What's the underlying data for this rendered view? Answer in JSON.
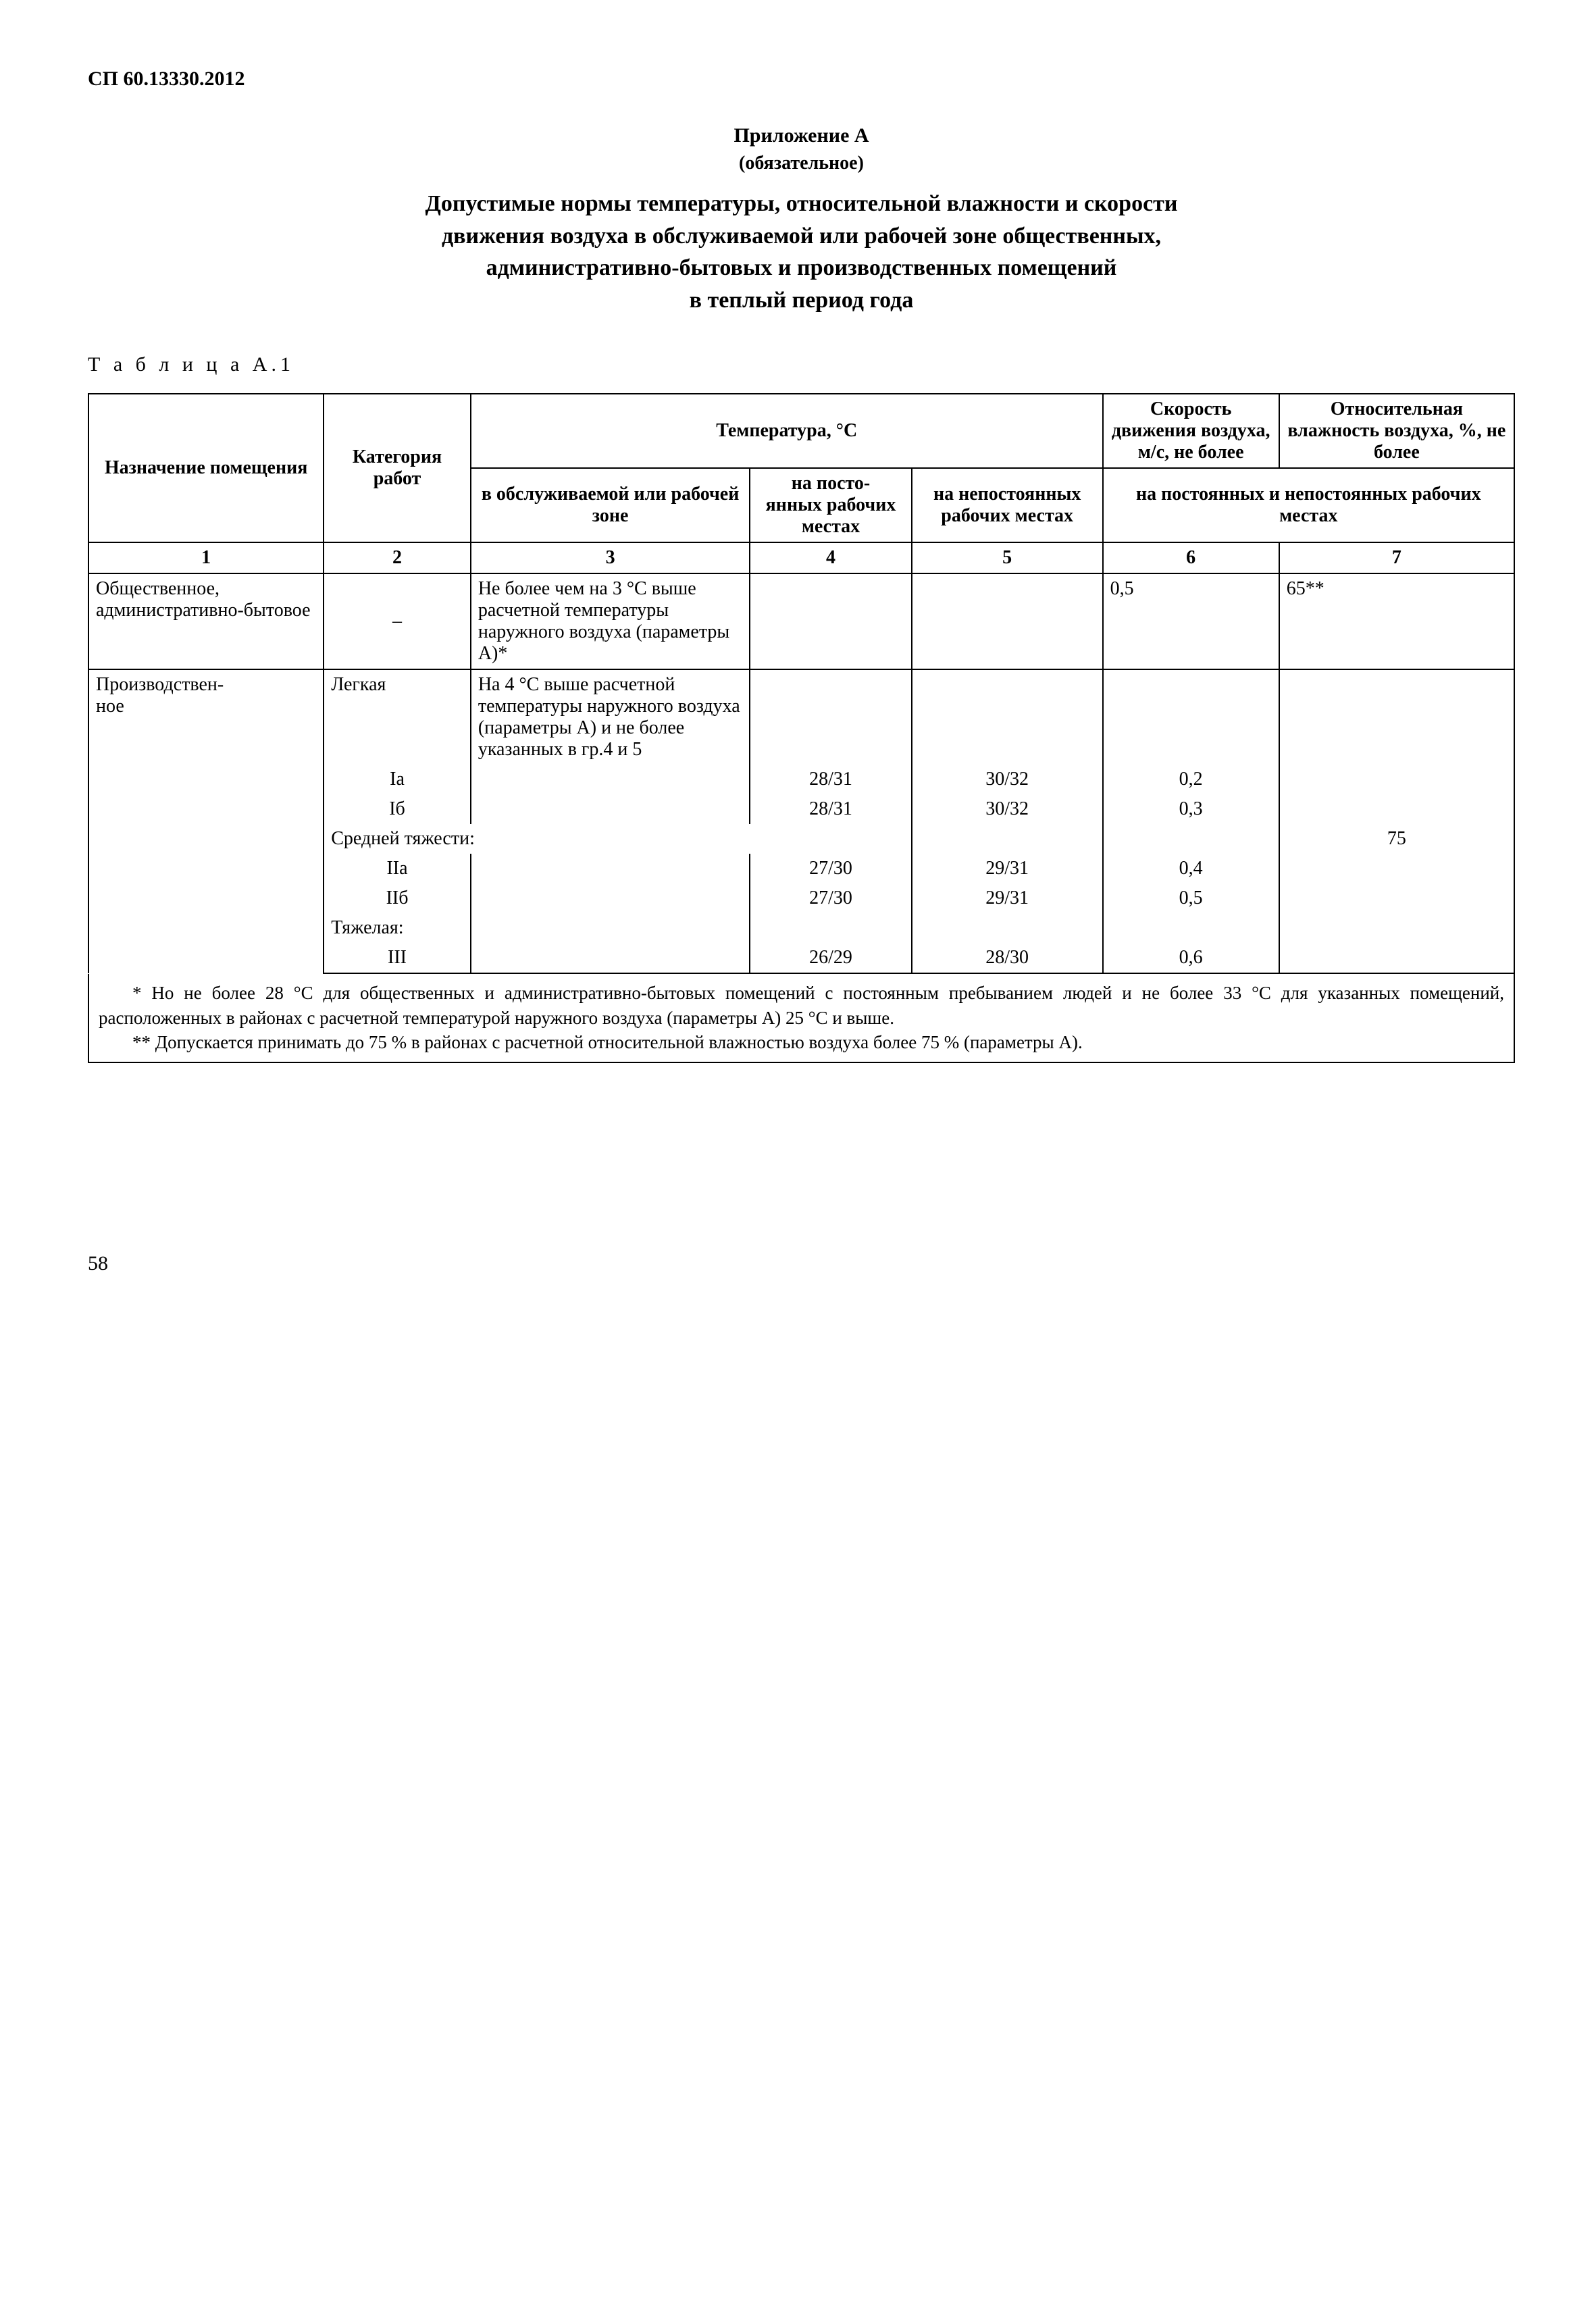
{
  "colors": {
    "background": "#ffffff",
    "text": "#000000",
    "border": "#000000"
  },
  "typography": {
    "font_family": "Times New Roman",
    "base_size_pt": 14,
    "title_size_pt": 17,
    "header_weight": "bold"
  },
  "doc_code": "СП 60.13330.2012",
  "appendix_title": "Приложение А",
  "appendix_subtitle": "(обязательное)",
  "main_title_l1": "Допустимые нормы температуры, относительной влажности и скорости",
  "main_title_l2": "движения воздуха в обслуживаемой или рабочей зоне общественных,",
  "main_title_l3": "административно-бытовых и производственных помещений",
  "main_title_l4": "в теплый период года",
  "table_label": "Т а б л и ц а  А.1",
  "table": {
    "type": "table",
    "column_widths_pct": [
      16,
      10,
      19,
      11,
      13,
      12,
      16
    ],
    "header": {
      "col1": "Назначение помещения",
      "col2": "Категория работ",
      "temp_group": "Температура, °С",
      "col3_sub": "в обслуживаемой или рабочей зоне",
      "col4_sub": "на посто-\nянных рабочих местах",
      "col5_sub": "на непостоянных рабочих местах",
      "col6": "Скорость движения воздуха, м/с, не более",
      "col7": "Относительная влажность воздуха, %, не более",
      "col67_sub": "на постоянных и непостоянных рабочих местах"
    },
    "col_nums": [
      "1",
      "2",
      "3",
      "4",
      "5",
      "6",
      "7"
    ],
    "rows": [
      {
        "c1": "Общественное, административно-бытовое",
        "c2": "–",
        "c3": "Не более чем на 3 °С выше расчетной температуры наружного воздуха (параметры А)*",
        "c4": "",
        "c5": "",
        "c6": "0,5",
        "c7": "65**"
      },
      {
        "c1": "Производствен-\nное",
        "c2_main": "Легкая",
        "c3_main": "На 4 °С выше расчетной температуры наружного воздуха (параметры А) и не более указанных в гр.4 и 5",
        "sub": [
          {
            "c2": "Iа",
            "c3": "",
            "c4": "28/31",
            "c5": "30/32",
            "c6": "0,2",
            "c7": ""
          },
          {
            "c2": "Iб",
            "c3": "",
            "c4": "28/31",
            "c5": "30/32",
            "c6": "0,3",
            "c7": ""
          }
        ],
        "mid_label": "Средней тяжести:",
        "mid_c7": "75",
        "sub2": [
          {
            "c2": "IIа",
            "c3": "",
            "c4": "27/30",
            "c5": "29/31",
            "c6": "0,4",
            "c7": ""
          },
          {
            "c2": "IIб",
            "c3": "",
            "c4": "27/30",
            "c5": "29/31",
            "c6": "0,5",
            "c7": ""
          }
        ],
        "heavy_label": "Тяжелая:",
        "sub3": [
          {
            "c2": "III",
            "c3": "",
            "c4": "26/29",
            "c5": "28/30",
            "c6": "0,6",
            "c7": ""
          }
        ]
      }
    ]
  },
  "footnote1": "* Но не более 28 °С для общественных и административно-бытовых помещений с постоянным пребыванием людей и не более 33 °С для указанных помещений, расположенных в районах с расчетной температурой наружного воздуха (параметры А) 25 °С и выше.",
  "footnote2": "** Допускается принимать до 75 % в районах с расчетной относительной влажностью воздуха более 75 % (параметры А).",
  "page_number": "58"
}
